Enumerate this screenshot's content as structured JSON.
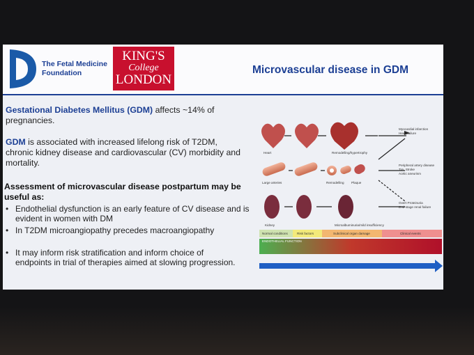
{
  "header": {
    "org": "The Fetal Medicine Foundation",
    "logo": [
      "KING'S",
      "College",
      "LONDON"
    ],
    "title": "Microvascular disease in GDM"
  },
  "body": {
    "intro": {
      "highlight": "Gestational Diabetes Mellitus (GDM)",
      "text": "affects ~14% of pregnancies."
    },
    "risk": {
      "highlight": "GDM",
      "text": "is associated with increased lifelong risk of T2DM, chronic kidney disease and cardiovascular (CV) morbidity and mortality."
    },
    "assessment": "Assessment of microvascular disease postpartum may be useful as:",
    "bullets": [
      "Endothelial dysfunction is an early feature of CV disease and is evident in women with DM",
      "In T2DM microangiopathy precedes macroangiopathy",
      "It may inform risk stratification and inform choice of endpoints in trial of therapies aimed at slowing progression."
    ]
  },
  "diagram": {
    "rows": [
      {
        "label": "Heart",
        "stage": "Remodelling/hypertrophy",
        "outcome": [
          "Myocardial infarction",
          "Heart failure"
        ]
      },
      {
        "label": "Large arteries",
        "stage": "Remodelling",
        "extra": "Plaque",
        "outcome": [
          "Peripheral artery disease",
          "TIA, Stroke",
          "Aortic aneurism"
        ]
      },
      {
        "label": "Kidney",
        "stage": "Microalbuminuria/mild insufficiency",
        "outcome": [
          "Overt Proteinuria",
          "End-stage renal failure"
        ]
      }
    ],
    "stages": [
      "Normal conditions",
      "Risk factors",
      "Subclinical organ damage",
      "Clinical events"
    ],
    "function": "ENDOTHELIAL FUNCTION"
  }
}
